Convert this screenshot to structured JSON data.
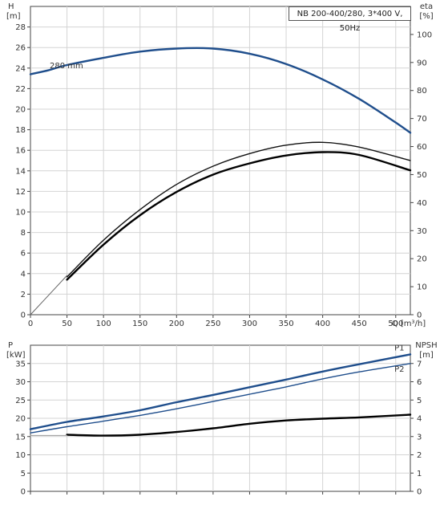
{
  "chart_data": [
    {
      "type": "line",
      "title": "NB 200-400/280, 3*400 V, 50Hz",
      "xlabel": "Q [m³/h]",
      "xlim": [
        0,
        520
      ],
      "x_ticks": [
        0,
        50,
        100,
        150,
        200,
        250,
        300,
        350,
        400,
        450,
        500
      ],
      "left_axis": {
        "label": "H",
        "unit": "[m]",
        "ylim": [
          0,
          30
        ],
        "ticks": [
          0,
          2,
          4,
          6,
          8,
          10,
          12,
          14,
          16,
          18,
          20,
          22,
          24,
          26,
          28
        ]
      },
      "right_axis": {
        "label": "eta",
        "unit": "[%]",
        "ylim": [
          0,
          110
        ],
        "ticks": [
          0,
          10,
          20,
          30,
          40,
          50,
          60,
          70,
          80,
          90,
          100
        ]
      },
      "annotations": [
        {
          "text": "280 mm"
        }
      ],
      "series": [
        {
          "name": "280 mm",
          "axis": "left",
          "color": "#1f4e8c",
          "x": [
            0,
            25,
            50,
            100,
            150,
            200,
            250,
            300,
            350,
            400,
            450,
            500,
            520
          ],
          "y": [
            23.4,
            23.8,
            24.3,
            25.0,
            25.6,
            25.9,
            25.9,
            25.4,
            24.4,
            22.9,
            21.0,
            18.7,
            17.7
          ]
        },
        {
          "axis": "right",
          "color": "#111111",
          "x": [
            50,
            100,
            150,
            200,
            250,
            300,
            350,
            400,
            450,
            520
          ],
          "y": [
            13.5,
            26.6,
            37.5,
            46.5,
            53.0,
            57.5,
            60.5,
            61.5,
            59.8,
            55.0
          ]
        },
        {
          "axis": "right",
          "color": "#000000",
          "x": [
            50,
            100,
            150,
            200,
            250,
            300,
            350,
            400,
            450,
            520
          ],
          "y": [
            12.5,
            25.0,
            35.5,
            43.8,
            50.0,
            54.0,
            56.8,
            58.0,
            57.0,
            51.5
          ]
        },
        {
          "axis": "right",
          "color": "#666666",
          "x": [
            0,
            50
          ],
          "y": [
            0,
            14
          ]
        }
      ]
    },
    {
      "type": "line",
      "xlim": [
        0,
        520
      ],
      "x_ticks": [
        0,
        50,
        100,
        150,
        200,
        250,
        300,
        350,
        400,
        450,
        500
      ],
      "left_axis": {
        "label": "P",
        "unit": "[kW]",
        "ylim": [
          0,
          40
        ],
        "ticks": [
          0,
          5,
          10,
          15,
          20,
          25,
          30,
          35
        ]
      },
      "right_axis": {
        "label": "NPSH",
        "unit": "[m]",
        "ylim": [
          0,
          8
        ],
        "ticks": [
          0,
          1,
          2,
          3,
          4,
          5,
          6,
          7
        ]
      },
      "series": [
        {
          "name": "P1",
          "axis": "left",
          "color": "#1f4e8c",
          "label_x": 505,
          "x": [
            0,
            50,
            100,
            150,
            200,
            250,
            300,
            350,
            400,
            450,
            520
          ],
          "y": [
            17.0,
            19.0,
            20.5,
            22.2,
            24.4,
            26.4,
            28.5,
            30.6,
            32.8,
            34.8,
            37.5
          ]
        },
        {
          "name": "P2",
          "axis": "left",
          "color": "#1f4e8c",
          "label_x": 505,
          "x": [
            0,
            50,
            100,
            150,
            200,
            250,
            300,
            350,
            400,
            450,
            520
          ],
          "y": [
            16.0,
            17.7,
            19.2,
            20.8,
            22.6,
            24.6,
            26.6,
            28.6,
            30.8,
            32.7,
            35.0
          ]
        },
        {
          "axis": "right",
          "color": "#000000",
          "x": [
            50,
            100,
            150,
            200,
            250,
            300,
            350,
            400,
            450,
            520
          ],
          "y": [
            3.1,
            3.05,
            3.1,
            3.25,
            3.45,
            3.7,
            3.88,
            3.98,
            4.05,
            4.2
          ]
        },
        {
          "axis": "left",
          "color": "#999999",
          "x": [
            0,
            50
          ],
          "y": [
            15.3,
            15.3
          ]
        }
      ]
    }
  ]
}
